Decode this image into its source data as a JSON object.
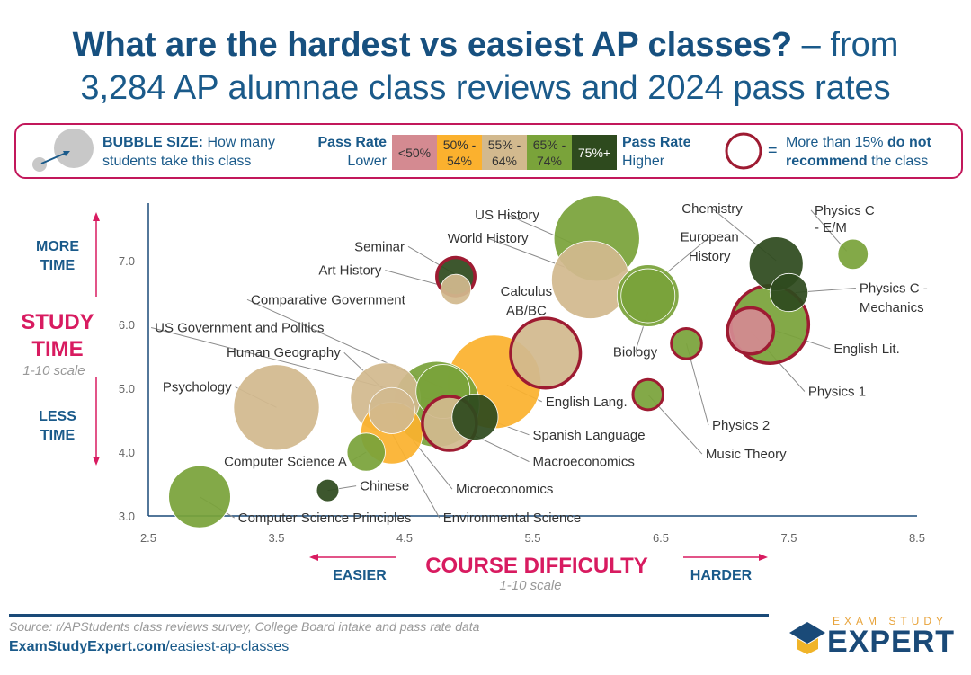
{
  "title": {
    "bold": "What are the hardest vs easiest AP classes?",
    "rest": " – from",
    "line2": "3,284 AP alumnae class reviews and 2024 pass rates"
  },
  "legend": {
    "bubble_label": "BUBBLE SIZE:",
    "bubble_text_1": "How many",
    "bubble_text_2": "students take this class",
    "pass_rate_lower_1": "Pass Rate",
    "pass_rate_lower_2": "Lower",
    "pass_rate_higher_1": "Pass Rate",
    "pass_rate_higher_2": "Higher",
    "bins": [
      {
        "label": "<50%",
        "color": "#d48a91"
      },
      {
        "label": "50% - 54%",
        "color": "#fbb12e"
      },
      {
        "label": "55% - 64%",
        "color": "#d2b98e"
      },
      {
        "label": "65% - 74%",
        "color": "#7aa33a"
      },
      {
        "label": "75%+",
        "color": "#2e4a1e"
      }
    ],
    "ring_equals": "=",
    "ring_text_1": "More than 15%",
    "ring_text_bold": "do not",
    "ring_text_2": "recommend",
    "ring_text_3": "the class",
    "ring_color": "#9e1b32"
  },
  "axes": {
    "y_more_1": "MORE",
    "y_more_2": "TIME",
    "y_title_1": "STUDY",
    "y_title_2": "TIME",
    "y_scale": "1-10 scale",
    "y_less_1": "LESS",
    "y_less_2": "TIME",
    "x_easier": "EASIER",
    "x_title": "COURSE DIFFICULTY",
    "x_scale": "1-10 scale",
    "x_harder": "HARDER",
    "accent": "#d81b60"
  },
  "chart_data": {
    "type": "scatter",
    "x_range": [
      2.5,
      8.5
    ],
    "y_range": [
      3.0,
      7.8
    ],
    "x_ticks": [
      "2.5",
      "3.5",
      "4.5",
      "5.5",
      "6.5",
      "7.5",
      "8.5"
    ],
    "y_ticks": [
      "3.0",
      "4.0",
      "5.0",
      "6.0",
      "7.0"
    ],
    "points": [
      {
        "name": "US History",
        "x": 6.0,
        "y": 7.35,
        "size": 9,
        "bin": 3,
        "ring": false
      },
      {
        "name": "World History",
        "x": 5.95,
        "y": 6.7,
        "size": 8,
        "bin": 2,
        "ring": false
      },
      {
        "name": "Seminar",
        "x": 4.9,
        "y": 6.75,
        "size": 3,
        "bin": 4,
        "ring": true
      },
      {
        "name": "Art History",
        "x": 4.9,
        "y": 6.55,
        "size": 2,
        "bin": 2,
        "ring": false
      },
      {
        "name": "Calculus AB/BC",
        "x": 5.6,
        "y": 5.55,
        "size": 7,
        "bin": 2,
        "ring": true
      },
      {
        "name": "European History",
        "x": 6.4,
        "y": 6.45,
        "size": 6,
        "bin": 3,
        "ring": false
      },
      {
        "name": "Chemistry",
        "x": 7.4,
        "y": 6.95,
        "size": 5,
        "bin": 4,
        "ring": false
      },
      {
        "name": "Physics C - E/M",
        "x": 8.0,
        "y": 7.1,
        "size": 2,
        "bin": 3,
        "ring": false
      },
      {
        "name": "Physics C - Mechanics",
        "x": 7.5,
        "y": 6.5,
        "size": 3,
        "bin": 4,
        "ring": false
      },
      {
        "name": "English Lit.",
        "x": 7.35,
        "y": 6.0,
        "size": 8,
        "bin": 3,
        "ring": true
      },
      {
        "name": "Physics 1",
        "x": 7.2,
        "y": 5.9,
        "size": 4,
        "bin": 0,
        "ring": true
      },
      {
        "name": "Physics 2",
        "x": 6.7,
        "y": 5.7,
        "size": 2,
        "bin": 3,
        "ring": true
      },
      {
        "name": "Biology",
        "x": 6.4,
        "y": 6.45,
        "size": 5,
        "bin": 3,
        "ring": false
      },
      {
        "name": "Music Theory",
        "x": 6.4,
        "y": 4.9,
        "size": 2,
        "bin": 3,
        "ring": true
      },
      {
        "name": "Comparative Government",
        "x": 4.8,
        "y": 4.95,
        "size": 5,
        "bin": 3,
        "ring": false
      },
      {
        "name": "US Government and Politics",
        "x": 4.75,
        "y": 4.75,
        "size": 9,
        "bin": 3,
        "ring": false
      },
      {
        "name": "Human Geography",
        "x": 4.35,
        "y": 4.85,
        "size": 7,
        "bin": 2,
        "ring": false
      },
      {
        "name": "Psychology",
        "x": 3.5,
        "y": 4.7,
        "size": 9,
        "bin": 2,
        "ring": false
      },
      {
        "name": "English Lang.",
        "x": 5.2,
        "y": 5.1,
        "size": 10,
        "bin": 1,
        "ring": false
      },
      {
        "name": "Spanish Language",
        "x": 5.05,
        "y": 4.55,
        "size": 4,
        "bin": 4,
        "ring": false
      },
      {
        "name": "Macroeconomics",
        "x": 4.85,
        "y": 4.45,
        "size": 5,
        "bin": 2,
        "ring": true
      },
      {
        "name": "Microeconomics",
        "x": 4.4,
        "y": 4.65,
        "size": 4,
        "bin": 2,
        "ring": false
      },
      {
        "name": "Computer Science A",
        "x": 4.2,
        "y": 4.0,
        "size": 3,
        "bin": 3,
        "ring": false
      },
      {
        "name": "Environmental Science",
        "x": 4.4,
        "y": 4.3,
        "size": 6,
        "bin": 1,
        "ring": false
      },
      {
        "name": "Chinese",
        "x": 3.9,
        "y": 3.4,
        "size": 1,
        "bin": 4,
        "ring": false
      },
      {
        "name": "Computer Science Principles",
        "x": 2.9,
        "y": 3.3,
        "size": 6,
        "bin": 3,
        "ring": false
      }
    ],
    "labels": [
      {
        "text": "US History",
        "tx": 5.3,
        "ty": 7.65,
        "anchor": "middle",
        "lx": 5.95,
        "ly": 7.15,
        "line": true
      },
      {
        "text": "World History",
        "tx": 5.15,
        "ty": 7.28,
        "anchor": "middle",
        "lx": 5.95,
        "ly": 6.75,
        "line": true
      },
      {
        "text": "Seminar",
        "tx": 4.5,
        "ty": 7.15,
        "anchor": "end",
        "lx": 4.9,
        "ly": 6.78,
        "line": true
      },
      {
        "text": "Art History",
        "tx": 4.32,
        "ty": 6.78,
        "anchor": "end",
        "lx": 4.9,
        "ly": 6.55,
        "line": true
      },
      {
        "text": "Calculus",
        "tx": 5.45,
        "ty": 6.45,
        "anchor": "middle",
        "lx": 0,
        "ly": 0,
        "line": false
      },
      {
        "text": "AB/BC",
        "tx": 5.45,
        "ty": 6.15,
        "anchor": "middle",
        "lx": 0,
        "ly": 0,
        "line": false
      },
      {
        "text": "European",
        "tx": 6.88,
        "ty": 7.3,
        "anchor": "middle",
        "lx": 6.45,
        "ly": 6.65,
        "line": true
      },
      {
        "text": "History",
        "tx": 6.88,
        "ty": 7.0,
        "anchor": "middle",
        "lx": 0,
        "ly": 0,
        "line": false
      },
      {
        "text": "Chemistry",
        "tx": 6.9,
        "ty": 7.75,
        "anchor": "middle",
        "lx": 7.4,
        "ly": 7.0,
        "line": true
      },
      {
        "text": "Physics C",
        "tx": 7.7,
        "ty": 7.72,
        "anchor": "start",
        "lx": 7.95,
        "ly": 7.15,
        "line": true
      },
      {
        "text": "- E/M",
        "tx": 7.7,
        "ty": 7.45,
        "anchor": "start",
        "lx": 0,
        "ly": 0,
        "line": false
      },
      {
        "text": "Physics C -",
        "tx": 8.05,
        "ty": 6.5,
        "anchor": "start",
        "lx": 7.55,
        "ly": 6.5,
        "line": true
      },
      {
        "text": "Mechanics",
        "tx": 8.05,
        "ty": 6.2,
        "anchor": "start",
        "lx": 0,
        "ly": 0,
        "line": false
      },
      {
        "text": "English Lit.",
        "tx": 7.85,
        "ty": 5.55,
        "anchor": "start",
        "lx": 7.4,
        "ly": 5.9,
        "line": true
      },
      {
        "text": "Physics 1",
        "tx": 7.65,
        "ty": 4.88,
        "anchor": "start",
        "lx": 7.2,
        "ly": 5.9,
        "line": true
      },
      {
        "text": "Physics 2",
        "tx": 6.9,
        "ty": 4.35,
        "anchor": "start",
        "lx": 6.7,
        "ly": 5.7,
        "line": true
      },
      {
        "text": "Biology",
        "tx": 6.3,
        "ty": 5.5,
        "anchor": "middle",
        "lx": 6.4,
        "ly": 6.2,
        "line": true
      },
      {
        "text": "Music Theory",
        "tx": 6.85,
        "ty": 3.9,
        "anchor": "start",
        "lx": 6.4,
        "ly": 4.9,
        "line": true
      },
      {
        "text": "Comparative Government",
        "tx": 3.3,
        "ty": 6.32,
        "anchor": "start",
        "lx": 4.8,
        "ly": 5.0,
        "line": true
      },
      {
        "text": "US Government and Politics",
        "tx": 2.55,
        "ty": 5.88,
        "anchor": "start",
        "lx": 4.75,
        "ly": 4.8,
        "line": true
      },
      {
        "text": "Human Geography",
        "tx": 4.0,
        "ty": 5.49,
        "anchor": "end",
        "lx": 4.35,
        "ly": 4.95,
        "line": true
      },
      {
        "text": "Psychology",
        "tx": 3.15,
        "ty": 4.95,
        "anchor": "end",
        "lx": 3.5,
        "ly": 4.7,
        "line": true
      },
      {
        "text": "English Lang.",
        "tx": 5.6,
        "ty": 4.72,
        "anchor": "start",
        "lx": 5.3,
        "ly": 5.05,
        "line": true
      },
      {
        "text": "Spanish Language",
        "tx": 5.5,
        "ty": 4.2,
        "anchor": "start",
        "lx": 5.1,
        "ly": 4.55,
        "line": true
      },
      {
        "text": "Macroeconomics",
        "tx": 5.5,
        "ty": 3.78,
        "anchor": "start",
        "lx": 4.9,
        "ly": 4.4,
        "line": true
      },
      {
        "text": "Microeconomics",
        "tx": 4.9,
        "ty": 3.35,
        "anchor": "start",
        "lx": 4.4,
        "ly": 4.6,
        "line": true
      },
      {
        "text": "Computer Science A",
        "tx": 4.05,
        "ty": 3.78,
        "anchor": "end",
        "lx": 4.2,
        "ly": 4.0,
        "line": true
      },
      {
        "text": "Environmental Science",
        "tx": 4.8,
        "ty": 2.9,
        "anchor": "start",
        "lx": 4.4,
        "ly": 4.3,
        "line": true
      },
      {
        "text": "Chinese",
        "tx": 4.15,
        "ty": 3.4,
        "anchor": "start",
        "lx": 3.9,
        "ly": 3.4,
        "line": true
      },
      {
        "text": "Computer Science Principles",
        "tx": 3.2,
        "ty": 2.9,
        "anchor": "start",
        "lx": 2.9,
        "ly": 3.3,
        "line": true
      }
    ]
  },
  "footer": {
    "source": "Source: r/APStudents class reviews survey, College Board intake and pass rate data",
    "site_bold": "ExamStudyExpert.com",
    "site_rest": "/easiest-ap-classes",
    "logo_small": "EXAM STUDY",
    "logo": "EXPERT"
  }
}
